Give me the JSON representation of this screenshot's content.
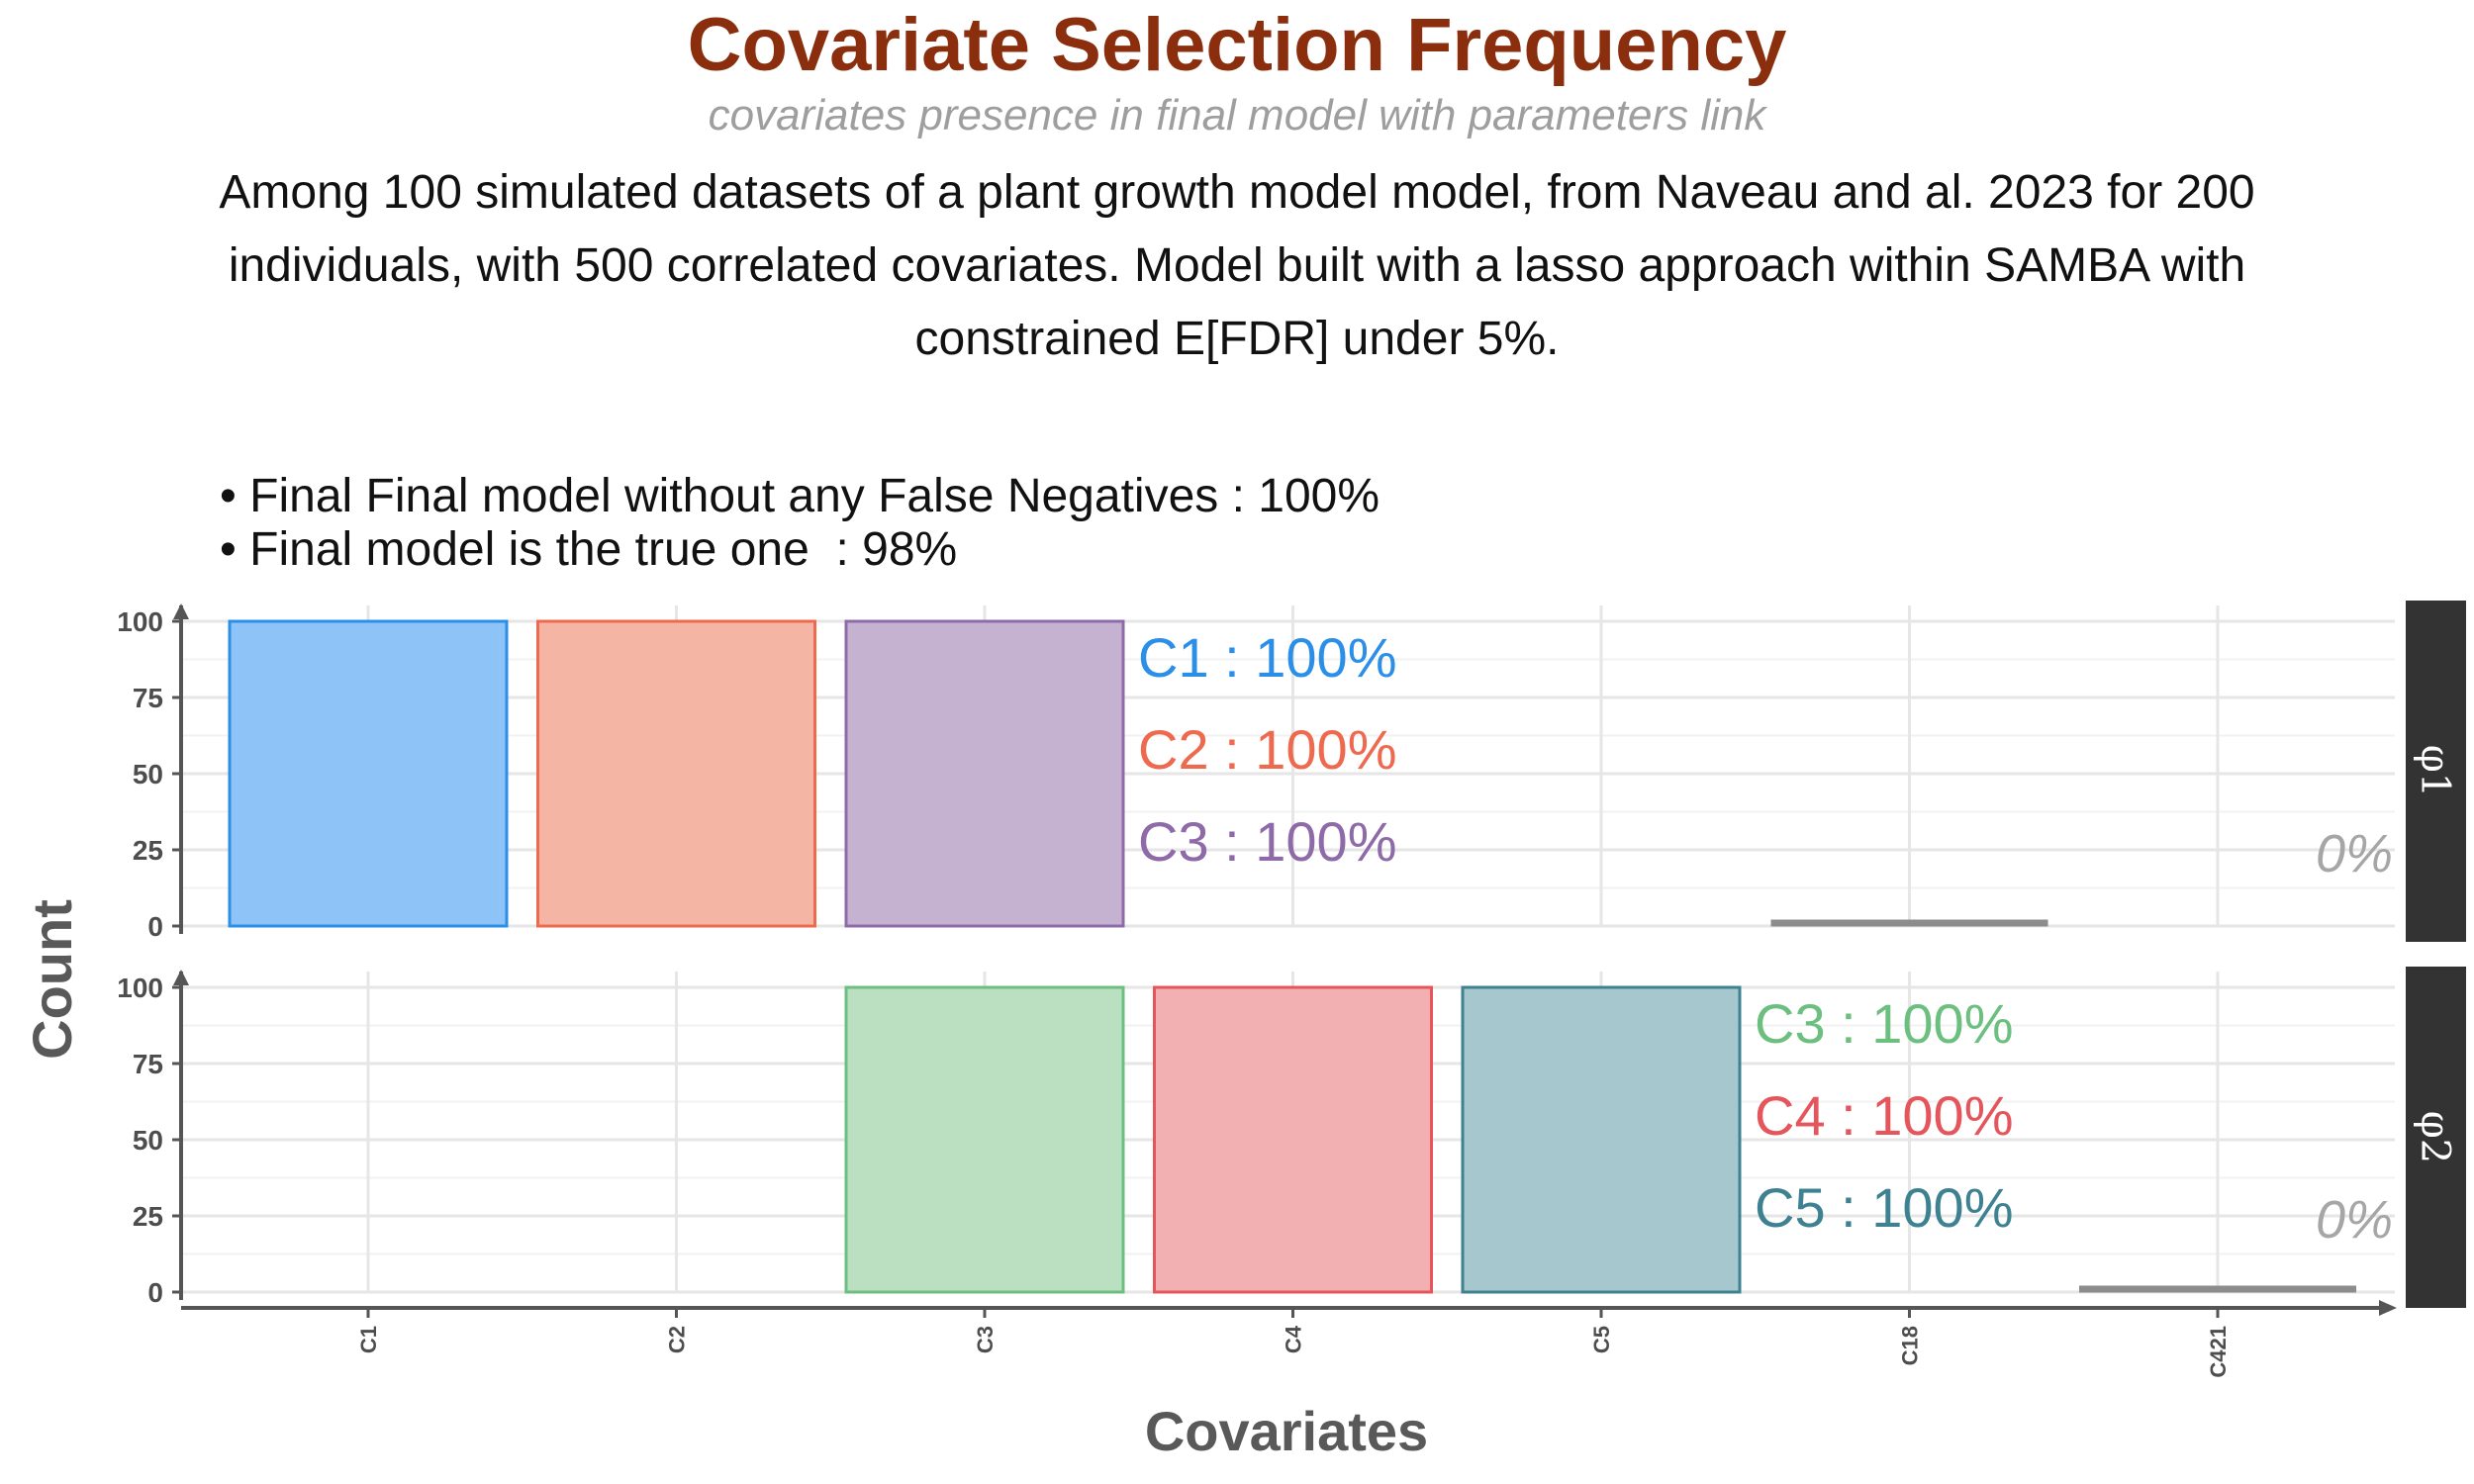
{
  "chart_data": {
    "type": "bar",
    "title": "Covariate Selection Frequency",
    "subtitle": "covariates presence in final model with parameters link",
    "caption": "Among 100 simulated datasets of a plant growth model model, from Naveau and al. 2023 for 200 individuals, with 500 correlated covariates. Model built with a lasso approach within SAMBA with constrained E[FDR] under 5%.",
    "annotations": [
      "• Final Final model without any False Negatives : 100%",
      "• Final model is the true one  : 98%"
    ],
    "xlabel": "Covariates",
    "ylabel": "Count",
    "ylim": [
      0,
      100
    ],
    "yticks": [
      0,
      25,
      50,
      75,
      100
    ],
    "categories": [
      "C1",
      "C2",
      "C3",
      "C4",
      "C5",
      "C18",
      "C421"
    ],
    "grid": true,
    "panels": [
      {
        "name": "φ1",
        "values": [
          100,
          100,
          100,
          0,
          0,
          0,
          0
        ],
        "colors": [
          "#2B8FE8",
          "#EE6A4E",
          "#8E6AA8",
          null,
          null,
          null,
          null
        ],
        "fills": [
          "#8DC3F6",
          "#F5B5A5",
          "#C5B2D0",
          null,
          null,
          null,
          null
        ],
        "false_positive_range": [
          "C18",
          "C18"
        ],
        "labels": [
          {
            "text": "C1 : 100%",
            "color": "#2B8FE8"
          },
          {
            "text": "C2 : 100%",
            "color": "#EE6A4E"
          },
          {
            "text": "C3 : 100%",
            "color": "#8E6AA8"
          }
        ],
        "zero_label": "0%"
      },
      {
        "name": "φ2",
        "values": [
          0,
          0,
          100,
          100,
          100,
          0,
          0
        ],
        "colors": [
          null,
          null,
          "#6CBF7F",
          "#E5555C",
          "#3E8292"
        ],
        "fills": [
          null,
          null,
          "#BADFC1",
          "#F3B0B3",
          "#A7C7CE"
        ],
        "false_positive_range": [
          "C421",
          "C421"
        ],
        "labels": [
          {
            "text": "C3 : 100%",
            "color": "#6CBF7F"
          },
          {
            "text": "C4 : 100%",
            "color": "#E5555C"
          },
          {
            "text": "C5 : 100%",
            "color": "#3E8292"
          }
        ],
        "zero_label": "0%"
      }
    ]
  }
}
